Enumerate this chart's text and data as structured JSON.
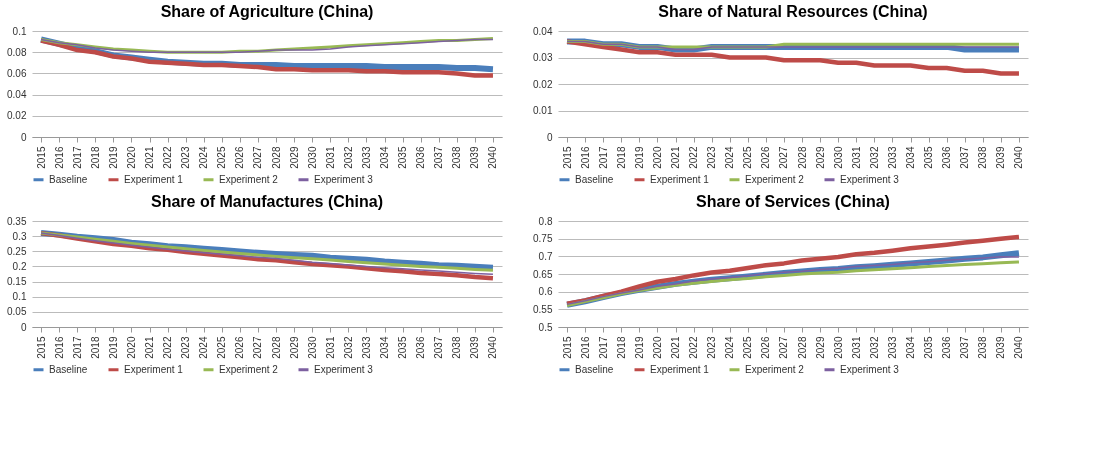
{
  "chart_data": [
    {
      "type": "line",
      "title": "Share of Agriculture (China)",
      "categories": [
        "2015",
        "2016",
        "2017",
        "2018",
        "2019",
        "2020",
        "2021",
        "2022",
        "2023",
        "2024",
        "2025",
        "2026",
        "2027",
        "2028",
        "2029",
        "2030",
        "2031",
        "2032",
        "2033",
        "2034",
        "2035",
        "2036",
        "2037",
        "2038",
        "2039",
        "2040"
      ],
      "ylim": [
        0,
        0.1
      ],
      "yticks": [
        0,
        0.02,
        0.04,
        0.06,
        0.08,
        0.1
      ],
      "grid": "y",
      "legend": "bottom",
      "series": [
        {
          "name": "Baseline",
          "color": "#4a7ebb",
          "values": [
            0.092,
            0.088,
            0.084,
            0.081,
            0.077,
            0.075,
            0.073,
            0.071,
            0.07,
            0.069,
            0.069,
            0.068,
            0.068,
            0.068,
            0.067,
            0.067,
            0.067,
            0.067,
            0.067,
            0.066,
            0.066,
            0.066,
            0.066,
            0.065,
            0.065,
            0.064
          ]
        },
        {
          "name": "Experiment 1",
          "color": "#be4b48",
          "values": [
            0.091,
            0.087,
            0.082,
            0.08,
            0.076,
            0.074,
            0.071,
            0.07,
            0.069,
            0.068,
            0.068,
            0.067,
            0.066,
            0.064,
            0.064,
            0.063,
            0.063,
            0.063,
            0.062,
            0.062,
            0.061,
            0.061,
            0.061,
            0.06,
            0.058,
            0.058
          ]
        },
        {
          "name": "Experiment 2",
          "color": "#98b954",
          "values": [
            0.092,
            0.089,
            0.087,
            0.085,
            0.083,
            0.082,
            0.081,
            0.08,
            0.08,
            0.08,
            0.08,
            0.081,
            0.081,
            0.082,
            0.083,
            0.084,
            0.085,
            0.086,
            0.087,
            0.088,
            0.089,
            0.09,
            0.091,
            0.091,
            0.092,
            0.093
          ]
        },
        {
          "name": "Experiment 3",
          "color": "#7d60a0",
          "values": [
            0.092,
            0.089,
            0.087,
            0.084,
            0.082,
            0.081,
            0.08,
            0.08,
            0.08,
            0.08,
            0.08,
            0.08,
            0.081,
            0.082,
            0.082,
            0.082,
            0.083,
            0.085,
            0.086,
            0.087,
            0.088,
            0.089,
            0.09,
            0.091,
            0.092,
            0.092
          ]
        }
      ]
    },
    {
      "type": "line",
      "title": "Share of Natural Resources (China)",
      "categories": [
        "2015",
        "2016",
        "2017",
        "2018",
        "2019",
        "2020",
        "2021",
        "2022",
        "2023",
        "2024",
        "2025",
        "2026",
        "2027",
        "2028",
        "2029",
        "2030",
        "2031",
        "2032",
        "2033",
        "2034",
        "2035",
        "2036",
        "2037",
        "2038",
        "2039",
        "2040"
      ],
      "ylim": [
        0,
        0.04
      ],
      "yticks": [
        0,
        0.01,
        0.02,
        0.03,
        0.04
      ],
      "grid": "y",
      "legend": "bottom",
      "series": [
        {
          "name": "Baseline",
          "color": "#4a7ebb",
          "values": [
            0.036,
            0.036,
            0.035,
            0.035,
            0.034,
            0.034,
            0.033,
            0.033,
            0.034,
            0.034,
            0.034,
            0.034,
            0.034,
            0.034,
            0.034,
            0.034,
            0.034,
            0.034,
            0.034,
            0.034,
            0.034,
            0.034,
            0.033,
            0.033,
            0.033,
            0.033
          ]
        },
        {
          "name": "Experiment 1",
          "color": "#be4b48",
          "values": [
            0.036,
            0.035,
            0.034,
            0.033,
            0.032,
            0.032,
            0.031,
            0.031,
            0.031,
            0.03,
            0.03,
            0.03,
            0.029,
            0.029,
            0.029,
            0.028,
            0.028,
            0.027,
            0.027,
            0.027,
            0.026,
            0.026,
            0.025,
            0.025,
            0.024,
            0.024
          ]
        },
        {
          "name": "Experiment 2",
          "color": "#98b954",
          "values": [
            0.036,
            0.036,
            0.035,
            0.035,
            0.034,
            0.034,
            0.034,
            0.034,
            0.034,
            0.034,
            0.034,
            0.034,
            0.035,
            0.035,
            0.035,
            0.035,
            0.035,
            0.035,
            0.035,
            0.035,
            0.035,
            0.035,
            0.035,
            0.035,
            0.035,
            0.035
          ]
        },
        {
          "name": "Experiment 3",
          "color": "#7d60a0",
          "values": [
            0.036,
            0.036,
            0.035,
            0.035,
            0.034,
            0.034,
            0.033,
            0.033,
            0.034,
            0.034,
            0.034,
            0.034,
            0.034,
            0.034,
            0.034,
            0.034,
            0.034,
            0.034,
            0.034,
            0.034,
            0.034,
            0.034,
            0.034,
            0.034,
            0.034,
            0.034
          ]
        }
      ]
    },
    {
      "type": "line",
      "title": "Share of Manufactures (China)",
      "categories": [
        "2015",
        "2016",
        "2017",
        "2018",
        "2019",
        "2020",
        "2021",
        "2022",
        "2023",
        "2024",
        "2025",
        "2026",
        "2027",
        "2028",
        "2029",
        "2030",
        "2031",
        "2032",
        "2033",
        "2034",
        "2035",
        "2036",
        "2037",
        "2038",
        "2039",
        "2040"
      ],
      "ylim": [
        0,
        0.35
      ],
      "yticks": [
        0,
        0.05,
        0.1,
        0.15,
        0.2,
        0.25,
        0.3,
        0.35
      ],
      "grid": "y",
      "legend": "bottom",
      "series": [
        {
          "name": "Baseline",
          "color": "#4a7ebb",
          "values": [
            0.31,
            0.305,
            0.298,
            0.293,
            0.287,
            0.278,
            0.273,
            0.267,
            0.263,
            0.258,
            0.254,
            0.249,
            0.245,
            0.241,
            0.238,
            0.235,
            0.229,
            0.225,
            0.222,
            0.216,
            0.212,
            0.209,
            0.204,
            0.202,
            0.199,
            0.196
          ]
        },
        {
          "name": "Experiment 1",
          "color": "#be4b48",
          "values": [
            0.31,
            0.302,
            0.292,
            0.283,
            0.274,
            0.268,
            0.26,
            0.255,
            0.248,
            0.242,
            0.236,
            0.23,
            0.224,
            0.22,
            0.214,
            0.208,
            0.204,
            0.2,
            0.194,
            0.188,
            0.184,
            0.178,
            0.175,
            0.171,
            0.165,
            0.161
          ]
        },
        {
          "name": "Experiment 2",
          "color": "#98b954",
          "values": [
            0.31,
            0.304,
            0.297,
            0.29,
            0.283,
            0.276,
            0.27,
            0.264,
            0.258,
            0.253,
            0.248,
            0.243,
            0.238,
            0.233,
            0.229,
            0.225,
            0.221,
            0.216,
            0.212,
            0.208,
            0.204,
            0.2,
            0.197,
            0.194,
            0.19,
            0.187
          ]
        },
        {
          "name": "Experiment 3",
          "color": "#7d60a0",
          "values": [
            0.31,
            0.302,
            0.293,
            0.285,
            0.277,
            0.27,
            0.263,
            0.257,
            0.251,
            0.245,
            0.24,
            0.235,
            0.23,
            0.226,
            0.22,
            0.214,
            0.21,
            0.205,
            0.2,
            0.196,
            0.192,
            0.188,
            0.185,
            0.181,
            0.177,
            0.174
          ]
        }
      ]
    },
    {
      "type": "line",
      "title": "Share of Services (China)",
      "categories": [
        "2015",
        "2016",
        "2017",
        "2018",
        "2019",
        "2020",
        "2021",
        "2022",
        "2023",
        "2024",
        "2025",
        "2026",
        "2027",
        "2028",
        "2029",
        "2030",
        "2031",
        "2032",
        "2033",
        "2034",
        "2035",
        "2036",
        "2037",
        "2038",
        "2039",
        "2040"
      ],
      "ylim": [
        0.5,
        0.8
      ],
      "yticks": [
        0.5,
        0.55,
        0.6,
        0.65,
        0.7,
        0.75,
        0.8
      ],
      "grid": "y",
      "legend": "bottom",
      "series": [
        {
          "name": "Baseline",
          "color": "#4a7ebb",
          "values": [
            0.563,
            0.573,
            0.585,
            0.596,
            0.605,
            0.614,
            0.622,
            0.628,
            0.634,
            0.638,
            0.643,
            0.648,
            0.653,
            0.657,
            0.661,
            0.664,
            0.669,
            0.672,
            0.676,
            0.68,
            0.684,
            0.688,
            0.693,
            0.697,
            0.703,
            0.709
          ]
        },
        {
          "name": "Experiment 1",
          "color": "#be4b48",
          "values": [
            0.566,
            0.575,
            0.588,
            0.6,
            0.615,
            0.628,
            0.636,
            0.646,
            0.654,
            0.659,
            0.667,
            0.675,
            0.68,
            0.688,
            0.693,
            0.698,
            0.706,
            0.71,
            0.716,
            0.723,
            0.728,
            0.733,
            0.739,
            0.744,
            0.75,
            0.755
          ]
        },
        {
          "name": "Experiment 2",
          "color": "#98b954",
          "values": [
            0.561,
            0.572,
            0.583,
            0.594,
            0.603,
            0.61,
            0.618,
            0.624,
            0.629,
            0.634,
            0.637,
            0.642,
            0.646,
            0.65,
            0.653,
            0.655,
            0.659,
            0.662,
            0.665,
            0.668,
            0.671,
            0.674,
            0.677,
            0.679,
            0.682,
            0.684
          ]
        },
        {
          "name": "Experiment 3",
          "color": "#7d60a0",
          "values": [
            0.564,
            0.574,
            0.586,
            0.596,
            0.605,
            0.615,
            0.622,
            0.63,
            0.636,
            0.64,
            0.645,
            0.651,
            0.655,
            0.658,
            0.663,
            0.666,
            0.671,
            0.674,
            0.677,
            0.682,
            0.685,
            0.689,
            0.692,
            0.695,
            0.699,
            0.698
          ]
        }
      ]
    }
  ]
}
